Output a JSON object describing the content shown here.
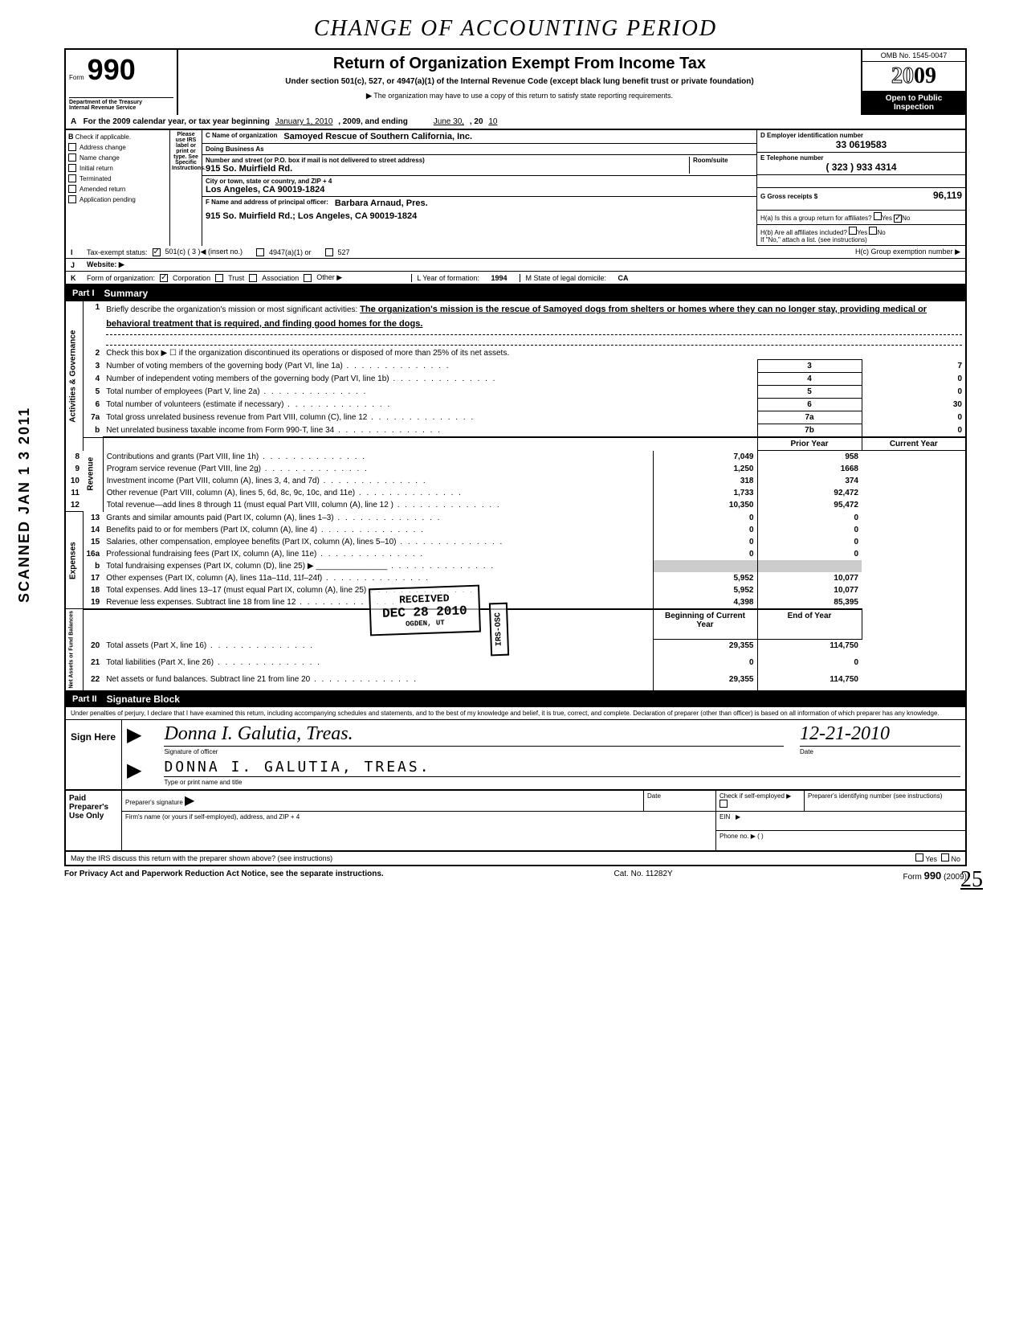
{
  "handwritten_title": "CHANGE OF ACCOUNTING PERIOD",
  "scanned_stamp": "SCANNED JAN 1 3 2011",
  "header": {
    "form_label": "Form",
    "form_number": "990",
    "dept1": "Department of the Treasury",
    "dept2": "Internal Revenue Service",
    "title": "Return of Organization Exempt From Income Tax",
    "subtitle": "Under section 501(c), 527, or 4947(a)(1) of the Internal Revenue Code (except black lung benefit trust or private foundation)",
    "note": "The organization may have to use a copy of this return to satisfy state reporting requirements.",
    "omb": "OMB No. 1545-0047",
    "year": "2009",
    "open_public": "Open to Public Inspection"
  },
  "row_a": {
    "prefix": "A",
    "text1": "For the 2009 calendar year, or tax year beginning",
    "begin": "January 1, 2010",
    "text2": ", 2009, and ending",
    "end": "June 30,",
    "text3": ", 20",
    "yr": "10"
  },
  "section_b": {
    "b_label": "B",
    "b_text": "Check if applicable.",
    "checks": [
      "Address change",
      "Name change",
      "Initial return",
      "Terminated",
      "Amended return",
      "Application pending"
    ],
    "mid_text": "Please use IRS label or print or type. See Specific Instructions.",
    "c_label": "C Name of organization",
    "c_value": "Samoyed Rescue of Southern California, Inc.",
    "dba": "Doing Business As",
    "addr_label": "Number and street (or P.O. box if mail is not delivered to street address)",
    "room_label": "Room/suite",
    "addr_value": "915 So. Muirfield Rd.",
    "city_label": "City or town, state or country, and ZIP + 4",
    "city_value": "Los Angeles, CA 90019-1824",
    "f_label": "F  Name and address of principal officer:",
    "f_name": "Barbara Arnaud, Pres.",
    "f_addr": "915 So. Muirfield Rd.;   Los Angeles, CA 90019-1824",
    "d_label": "D  Employer identification number",
    "d_value": "33        0619583",
    "e_label": "E  Telephone number",
    "e_value": "( 323 )        933 4314",
    "g_label": "G  Gross receipts $",
    "g_value": "96,119",
    "h_a": "H(a)  Is this a group return for affiliates?",
    "h_b": "H(b)  Are all affiliates included?",
    "h_note": "If \"No,\" attach a list. (see instructions)",
    "h_c": "H(c) Group exemption number ▶",
    "yes": "Yes",
    "no": "No"
  },
  "row_i": {
    "lbl": "I",
    "text": "Tax-exempt status:",
    "opt1": "501(c) (  3  )◀ (insert no.)",
    "opt2": "4947(a)(1) or",
    "opt3": "527"
  },
  "row_j": {
    "lbl": "J",
    "text": "Website: ▶"
  },
  "row_k": {
    "lbl": "K",
    "text": "Form of organization:",
    "opts": [
      "Corporation",
      "Trust",
      "Association",
      "Other ▶"
    ],
    "l_text": "L  Year of formation:",
    "l_val": "1994",
    "m_text": "M State of legal domicile:",
    "m_val": "CA"
  },
  "part1": {
    "num": "Part I",
    "title": "Summary"
  },
  "summary": {
    "activities_label": "Activities & Governance",
    "revenue_label": "Revenue",
    "expenses_label": "Expenses",
    "netassets_label": "Net Assets or Fund Balances",
    "line1_num": "1",
    "line1_text": "Briefly describe the organization's mission or most significant activities:",
    "mission": "The organization's mission is the rescue of Samoyed dogs from shelters or homes where they can no longer stay, providing medical or behavioral treatment that is required, and finding good homes for the dogs.",
    "line2_num": "2",
    "line2_text": "Check this box ▶ ☐  if the organization discontinued its operations or disposed of more than 25% of its net assets.",
    "lines_gov": [
      {
        "n": "3",
        "t": "Number of voting members of the governing body (Part VI, line 1a)",
        "box": "3",
        "v": "7"
      },
      {
        "n": "4",
        "t": "Number of independent voting members of the governing body (Part VI, line 1b)",
        "box": "4",
        "v": "0"
      },
      {
        "n": "5",
        "t": "Total number of employees (Part V, line 2a)",
        "box": "5",
        "v": "0"
      },
      {
        "n": "6",
        "t": "Total number of volunteers (estimate if necessary)",
        "box": "6",
        "v": "30"
      },
      {
        "n": "7a",
        "t": "Total gross unrelated business revenue from Part VIII, column (C), line 12",
        "box": "7a",
        "v": "0"
      },
      {
        "n": "b",
        "t": "Net unrelated business taxable income from Form 990-T, line 34",
        "box": "7b",
        "v": "0"
      }
    ],
    "prior_hdr": "Prior Year",
    "current_hdr": "Current Year",
    "lines_rev": [
      {
        "n": "8",
        "t": "Contributions and grants (Part VIII, line 1h)",
        "p": "7,049",
        "c": "958"
      },
      {
        "n": "9",
        "t": "Program service revenue (Part VIII, line 2g)",
        "p": "1,250",
        "c": "1668"
      },
      {
        "n": "10",
        "t": "Investment income (Part VIII, column (A), lines 3, 4, and 7d)",
        "p": "318",
        "c": "374"
      },
      {
        "n": "11",
        "t": "Other revenue (Part VIII, column (A), lines 5, 6d, 8c, 9c, 10c, and 11e)",
        "p": "1,733",
        "c": "92,472"
      },
      {
        "n": "12",
        "t": "Total revenue—add lines 8 through 11 (must equal Part VIII, column (A), line 12 )",
        "p": "10,350",
        "c": "95,472"
      }
    ],
    "lines_exp": [
      {
        "n": "13",
        "t": "Grants and similar amounts paid (Part IX, column (A), lines 1–3)",
        "p": "0",
        "c": "0"
      },
      {
        "n": "14",
        "t": "Benefits paid to or for members (Part IX, column (A), line 4)",
        "p": "0",
        "c": "0"
      },
      {
        "n": "15",
        "t": "Salaries, other compensation, employee benefits (Part IX, column (A), lines 5–10)",
        "p": "0",
        "c": "0"
      },
      {
        "n": "16a",
        "t": "Professional fundraising fees (Part IX, column (A), line 11e)",
        "p": "0",
        "c": "0"
      },
      {
        "n": "b",
        "t": "Total fundraising expenses (Part IX, column (D), line 25) ▶ ________________",
        "p": "",
        "c": ""
      },
      {
        "n": "17",
        "t": "Other expenses (Part IX, column (A), lines 11a–11d, 11f–24f)",
        "p": "5,952",
        "c": "10,077"
      },
      {
        "n": "18",
        "t": "Total expenses. Add lines 13–17 (must equal Part IX, column (A), line 25)",
        "p": "5,952",
        "c": "10,077"
      },
      {
        "n": "19",
        "t": "Revenue less expenses. Subtract line 18 from line 12",
        "p": "4,398",
        "c": "85,395"
      }
    ],
    "begin_hdr": "Beginning of Current Year",
    "end_hdr": "End of Year",
    "lines_net": [
      {
        "n": "20",
        "t": "Total assets (Part X, line 16)",
        "p": "29,355",
        "c": "114,750"
      },
      {
        "n": "21",
        "t": "Total liabilities (Part X, line 26)",
        "p": "0",
        "c": "0"
      },
      {
        "n": "22",
        "t": "Net assets or fund balances. Subtract line 21 from line 20",
        "p": "29,355",
        "c": "114,750"
      }
    ]
  },
  "stamp_received": {
    "l1": "RECEIVED",
    "l2": "DEC 28 2010",
    "l3": "OGDEN, UT"
  },
  "stamp_irs": "IRS-OSC",
  "part2": {
    "num": "Part II",
    "title": "Signature Block"
  },
  "sig": {
    "disclaimer": "Under penalties of perjury, I declare that I have examined this return, including accompanying schedules and statements, and to the best of my knowledge and belief, it is true, correct, and complete. Declaration of preparer (other than officer) is based on all information of which preparer has any knowledge.",
    "sign_here": "Sign Here",
    "sig_script": "Donna I. Galutia, Treas.",
    "sig_label": "Signature of officer",
    "date_label": "Date",
    "date_val": "12-21-2010",
    "name_script": "DONNA I. GALUTIA, TREAS.",
    "name_label": "Type or print name and title"
  },
  "preparer": {
    "left": "Paid Preparer's Use Only",
    "sig_label": "Preparer's signature",
    "date_label": "Date",
    "check_label": "Check if self-employed ▶",
    "pin_label": "Preparer's identifying number (see instructions)",
    "firm_label": "Firm's name (or yours if self-employed), address, and ZIP + 4",
    "ein_label": "EIN",
    "phone_label": "Phone no. ▶ (            )",
    "discuss": "May the IRS discuss this return with the preparer shown above? (see instructions)"
  },
  "footer": {
    "privacy": "For Privacy Act and Paperwork Reduction Act Notice, see the separate instructions.",
    "cat": "Cat. No. 11282Y",
    "form": "Form 990 (2009)"
  },
  "page_num": "25"
}
